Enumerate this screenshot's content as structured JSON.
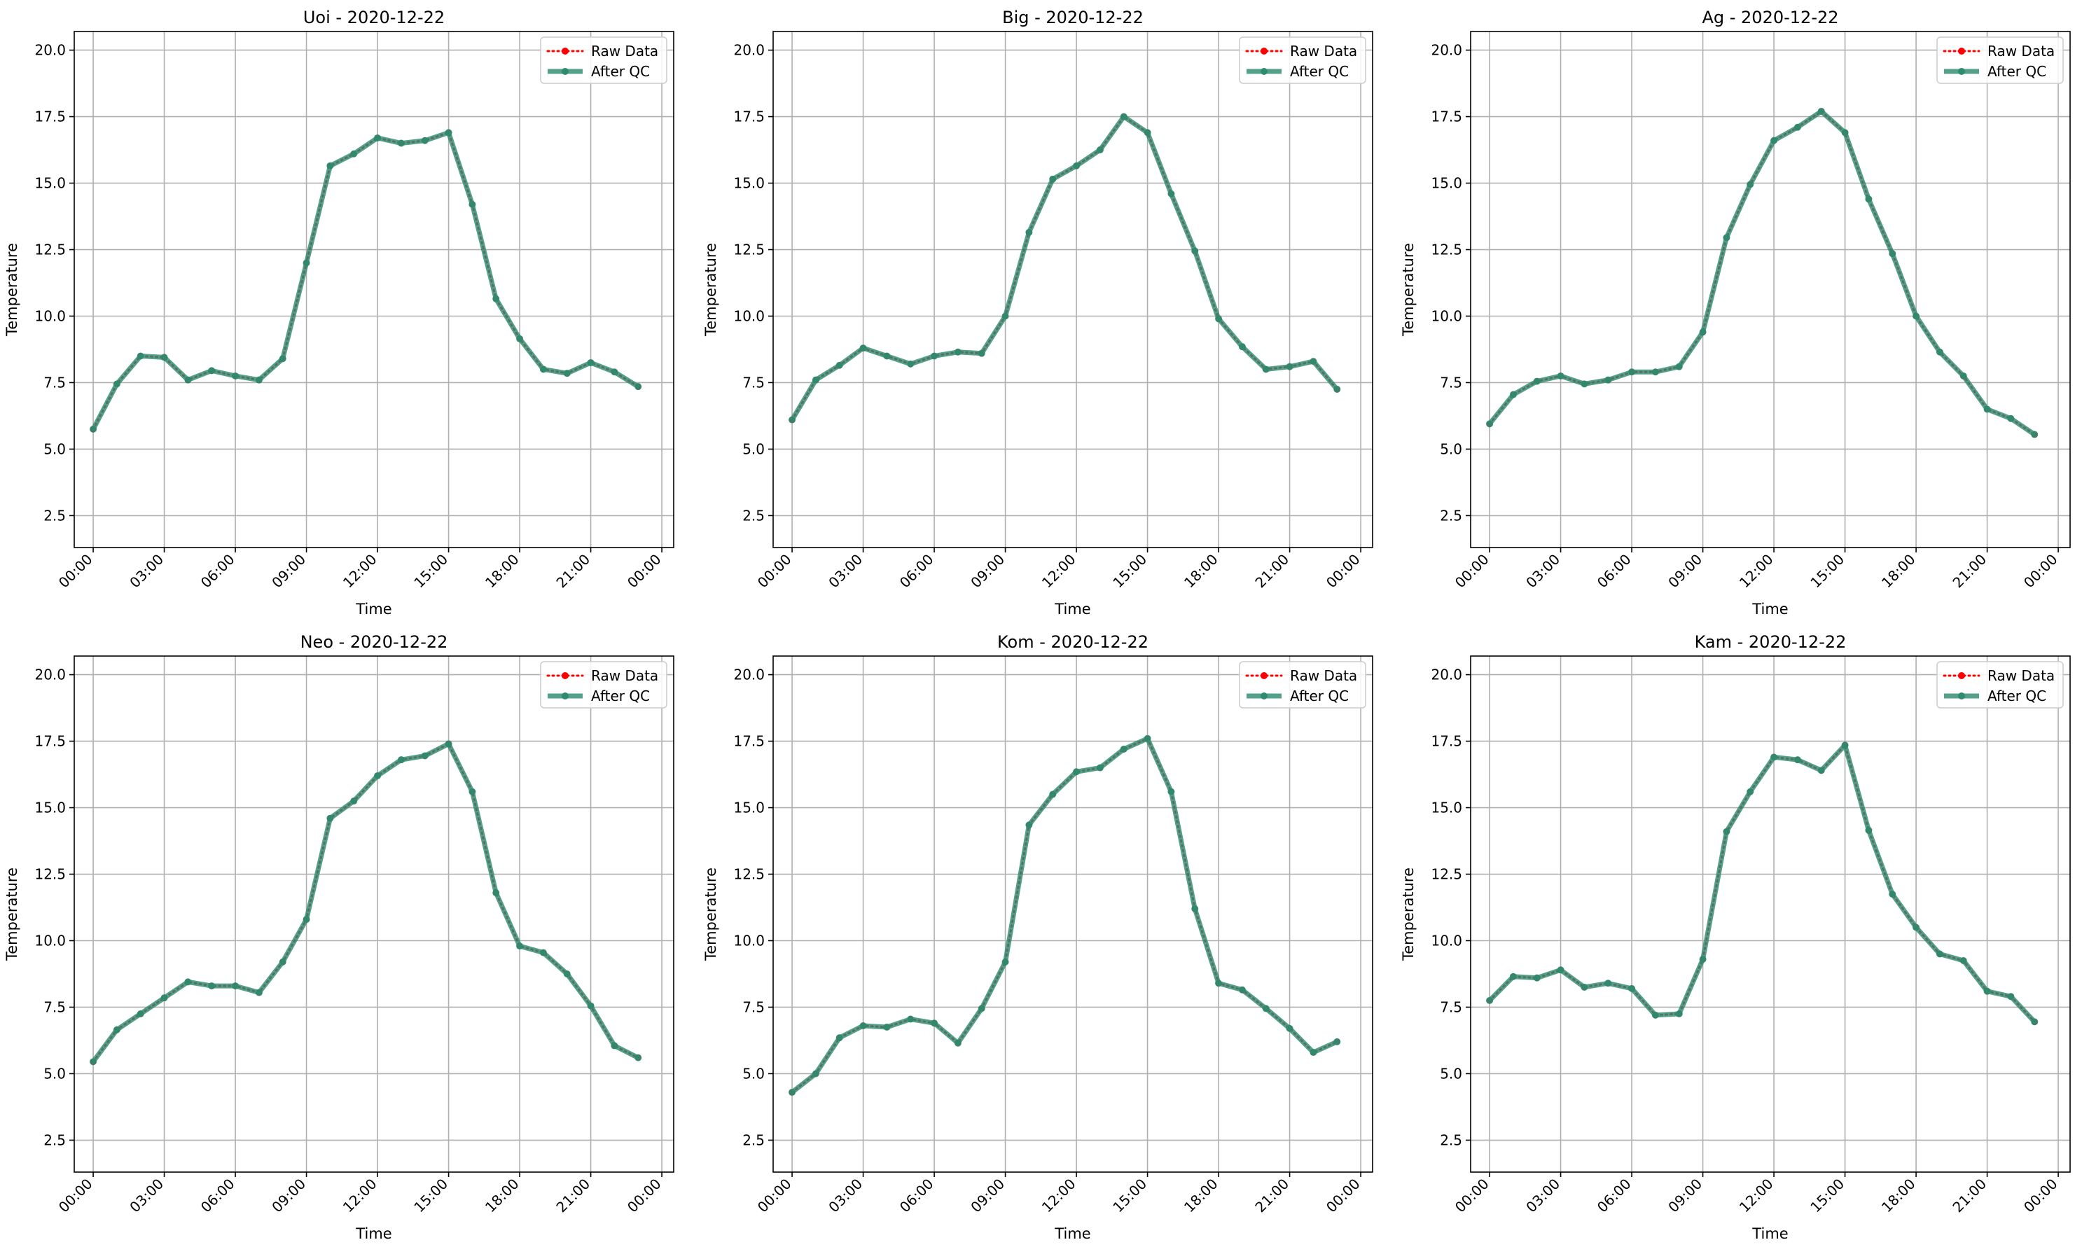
{
  "colors": {
    "raw": "#ff0000",
    "qc": "#2e8b70",
    "grid": "#b0b0b0",
    "axis": "#000000"
  },
  "chart_data": [
    {
      "type": "line",
      "title": "Uoi - 2020-12-22",
      "xlabel": "Time",
      "ylabel": "Temperature",
      "ylim": [
        1.3,
        20.7
      ],
      "x_ticks": [
        "00:00",
        "03:00",
        "06:00",
        "09:00",
        "12:00",
        "15:00",
        "18:00",
        "21:00",
        "00:00"
      ],
      "y_ticks": [
        "2.5",
        "5.0",
        "7.5",
        "10.0",
        "12.5",
        "15.0",
        "17.5",
        "20.0"
      ],
      "grid": true,
      "legend_position": "top-right",
      "x": [
        "00:00",
        "01:00",
        "02:00",
        "03:00",
        "04:00",
        "05:00",
        "06:00",
        "07:00",
        "08:00",
        "09:00",
        "10:00",
        "11:00",
        "12:00",
        "13:00",
        "14:00",
        "15:00",
        "16:00",
        "17:00",
        "18:00",
        "19:00",
        "20:00",
        "21:00",
        "22:00",
        "23:00"
      ],
      "series": [
        {
          "name": "Raw Data",
          "values": [
            5.75,
            7.45,
            8.5,
            8.45,
            7.6,
            7.95,
            7.75,
            7.6,
            8.4,
            12.0,
            15.65,
            16.1,
            16.7,
            16.5,
            16.6,
            16.9,
            14.2,
            10.65,
            9.15,
            8.0,
            7.85,
            8.25,
            7.9,
            7.35
          ]
        },
        {
          "name": "After QC",
          "values": [
            5.75,
            7.45,
            8.5,
            8.45,
            7.6,
            7.95,
            7.75,
            7.6,
            8.4,
            12.0,
            15.65,
            16.1,
            16.7,
            16.5,
            16.6,
            16.9,
            14.2,
            10.65,
            9.15,
            8.0,
            7.85,
            8.25,
            7.9,
            7.35
          ]
        }
      ]
    },
    {
      "type": "line",
      "title": "Big - 2020-12-22",
      "xlabel": "Time",
      "ylabel": "Temperature",
      "ylim": [
        1.3,
        20.7
      ],
      "x_ticks": [
        "00:00",
        "03:00",
        "06:00",
        "09:00",
        "12:00",
        "15:00",
        "18:00",
        "21:00",
        "00:00"
      ],
      "y_ticks": [
        "2.5",
        "5.0",
        "7.5",
        "10.0",
        "12.5",
        "15.0",
        "17.5",
        "20.0"
      ],
      "grid": true,
      "legend_position": "top-right",
      "x": [
        "00:00",
        "01:00",
        "02:00",
        "03:00",
        "04:00",
        "05:00",
        "06:00",
        "07:00",
        "08:00",
        "09:00",
        "10:00",
        "11:00",
        "12:00",
        "13:00",
        "14:00",
        "15:00",
        "16:00",
        "17:00",
        "18:00",
        "19:00",
        "20:00",
        "21:00",
        "22:00",
        "23:00"
      ],
      "series": [
        {
          "name": "Raw Data",
          "values": [
            6.1,
            7.6,
            8.15,
            8.8,
            8.5,
            8.2,
            8.5,
            8.65,
            8.6,
            10.0,
            13.15,
            15.15,
            15.65,
            16.25,
            17.5,
            16.9,
            14.6,
            12.45,
            9.9,
            8.85,
            8.0,
            8.1,
            8.3,
            7.25
          ]
        },
        {
          "name": "After QC",
          "values": [
            6.1,
            7.6,
            8.15,
            8.8,
            8.5,
            8.2,
            8.5,
            8.65,
            8.6,
            10.0,
            13.15,
            15.15,
            15.65,
            16.25,
            17.5,
            16.9,
            14.6,
            12.45,
            9.9,
            8.85,
            8.0,
            8.1,
            8.3,
            7.25
          ]
        }
      ]
    },
    {
      "type": "line",
      "title": "Ag - 2020-12-22",
      "xlabel": "Time",
      "ylabel": "Temperature",
      "ylim": [
        1.3,
        20.7
      ],
      "x_ticks": [
        "00:00",
        "03:00",
        "06:00",
        "09:00",
        "12:00",
        "15:00",
        "18:00",
        "21:00",
        "00:00"
      ],
      "y_ticks": [
        "2.5",
        "5.0",
        "7.5",
        "10.0",
        "12.5",
        "15.0",
        "17.5",
        "20.0"
      ],
      "grid": true,
      "legend_position": "top-right",
      "x": [
        "00:00",
        "01:00",
        "02:00",
        "03:00",
        "04:00",
        "05:00",
        "06:00",
        "07:00",
        "08:00",
        "09:00",
        "10:00",
        "11:00",
        "12:00",
        "13:00",
        "14:00",
        "15:00",
        "16:00",
        "17:00",
        "18:00",
        "19:00",
        "20:00",
        "21:00",
        "22:00",
        "23:00"
      ],
      "series": [
        {
          "name": "Raw Data",
          "values": [
            5.95,
            7.05,
            7.55,
            7.75,
            7.45,
            7.6,
            7.9,
            7.9,
            8.1,
            9.4,
            12.95,
            14.95,
            16.6,
            17.1,
            17.7,
            16.9,
            14.4,
            12.35,
            10.0,
            8.65,
            7.75,
            6.5,
            6.15,
            5.55
          ]
        },
        {
          "name": "After QC",
          "values": [
            5.95,
            7.05,
            7.55,
            7.75,
            7.45,
            7.6,
            7.9,
            7.9,
            8.1,
            9.4,
            12.95,
            14.95,
            16.6,
            17.1,
            17.7,
            16.9,
            14.4,
            12.35,
            10.0,
            8.65,
            7.75,
            6.5,
            6.15,
            5.55
          ]
        }
      ]
    },
    {
      "type": "line",
      "title": "Neo - 2020-12-22",
      "xlabel": "Time",
      "ylabel": "Temperature",
      "ylim": [
        1.3,
        20.7
      ],
      "x_ticks": [
        "00:00",
        "03:00",
        "06:00",
        "09:00",
        "12:00",
        "15:00",
        "18:00",
        "21:00",
        "00:00"
      ],
      "y_ticks": [
        "2.5",
        "5.0",
        "7.5",
        "10.0",
        "12.5",
        "15.0",
        "17.5",
        "20.0"
      ],
      "grid": true,
      "legend_position": "top-right",
      "x": [
        "00:00",
        "01:00",
        "02:00",
        "03:00",
        "04:00",
        "05:00",
        "06:00",
        "07:00",
        "08:00",
        "09:00",
        "10:00",
        "11:00",
        "12:00",
        "13:00",
        "14:00",
        "15:00",
        "16:00",
        "17:00",
        "18:00",
        "19:00",
        "20:00",
        "21:00",
        "22:00",
        "23:00"
      ],
      "series": [
        {
          "name": "Raw Data",
          "values": [
            5.45,
            6.65,
            7.25,
            7.85,
            8.45,
            8.3,
            8.3,
            8.05,
            9.2,
            10.8,
            14.6,
            15.25,
            16.2,
            16.8,
            16.95,
            17.4,
            15.6,
            11.8,
            9.8,
            9.55,
            8.75,
            7.55,
            6.05,
            5.6
          ]
        },
        {
          "name": "After QC",
          "values": [
            5.45,
            6.65,
            7.25,
            7.85,
            8.45,
            8.3,
            8.3,
            8.05,
            9.2,
            10.8,
            14.6,
            15.25,
            16.2,
            16.8,
            16.95,
            17.4,
            15.6,
            11.8,
            9.8,
            9.55,
            8.75,
            7.55,
            6.05,
            5.6
          ]
        }
      ]
    },
    {
      "type": "line",
      "title": "Kom - 2020-12-22",
      "xlabel": "Time",
      "ylabel": "Temperature",
      "ylim": [
        1.3,
        20.7
      ],
      "x_ticks": [
        "00:00",
        "03:00",
        "06:00",
        "09:00",
        "12:00",
        "15:00",
        "18:00",
        "21:00",
        "00:00"
      ],
      "y_ticks": [
        "2.5",
        "5.0",
        "7.5",
        "10.0",
        "12.5",
        "15.0",
        "17.5",
        "20.0"
      ],
      "grid": true,
      "legend_position": "top-right",
      "x": [
        "00:00",
        "01:00",
        "02:00",
        "03:00",
        "04:00",
        "05:00",
        "06:00",
        "07:00",
        "08:00",
        "09:00",
        "10:00",
        "11:00",
        "12:00",
        "13:00",
        "14:00",
        "15:00",
        "16:00",
        "17:00",
        "18:00",
        "19:00",
        "20:00",
        "21:00",
        "22:00",
        "23:00"
      ],
      "series": [
        {
          "name": "Raw Data",
          "values": [
            4.3,
            5.0,
            6.35,
            6.8,
            6.75,
            7.05,
            6.9,
            6.15,
            7.45,
            9.2,
            14.35,
            15.5,
            16.35,
            16.5,
            17.2,
            17.6,
            15.6,
            11.2,
            8.4,
            8.15,
            7.45,
            6.7,
            5.8,
            6.2
          ]
        },
        {
          "name": "After QC",
          "values": [
            4.3,
            5.0,
            6.35,
            6.8,
            6.75,
            7.05,
            6.9,
            6.15,
            7.45,
            9.2,
            14.35,
            15.5,
            16.35,
            16.5,
            17.2,
            17.6,
            15.6,
            11.2,
            8.4,
            8.15,
            7.45,
            6.7,
            5.8,
            6.2
          ]
        }
      ]
    },
    {
      "type": "line",
      "title": "Kam - 2020-12-22",
      "xlabel": "Time",
      "ylabel": "Temperature",
      "ylim": [
        1.3,
        20.7
      ],
      "x_ticks": [
        "00:00",
        "03:00",
        "06:00",
        "09:00",
        "12:00",
        "15:00",
        "18:00",
        "21:00",
        "00:00"
      ],
      "y_ticks": [
        "2.5",
        "5.0",
        "7.5",
        "10.0",
        "12.5",
        "15.0",
        "17.5",
        "20.0"
      ],
      "grid": true,
      "legend_position": "top-right",
      "x": [
        "00:00",
        "01:00",
        "02:00",
        "03:00",
        "04:00",
        "05:00",
        "06:00",
        "07:00",
        "08:00",
        "09:00",
        "10:00",
        "11:00",
        "12:00",
        "13:00",
        "14:00",
        "15:00",
        "16:00",
        "17:00",
        "18:00",
        "19:00",
        "20:00",
        "21:00",
        "22:00",
        "23:00"
      ],
      "series": [
        {
          "name": "Raw Data",
          "values": [
            7.75,
            8.65,
            8.6,
            8.9,
            8.25,
            8.4,
            8.2,
            7.2,
            7.25,
            9.3,
            14.1,
            15.6,
            16.9,
            16.8,
            16.4,
            17.35,
            14.15,
            11.75,
            10.5,
            9.5,
            9.25,
            8.1,
            7.9,
            6.95
          ]
        },
        {
          "name": "After QC",
          "values": [
            7.75,
            8.65,
            8.6,
            8.9,
            8.25,
            8.4,
            8.2,
            7.2,
            7.25,
            9.3,
            14.1,
            15.6,
            16.9,
            16.8,
            16.4,
            17.35,
            14.15,
            11.75,
            10.5,
            9.5,
            9.25,
            8.1,
            7.9,
            6.95
          ]
        }
      ]
    }
  ]
}
